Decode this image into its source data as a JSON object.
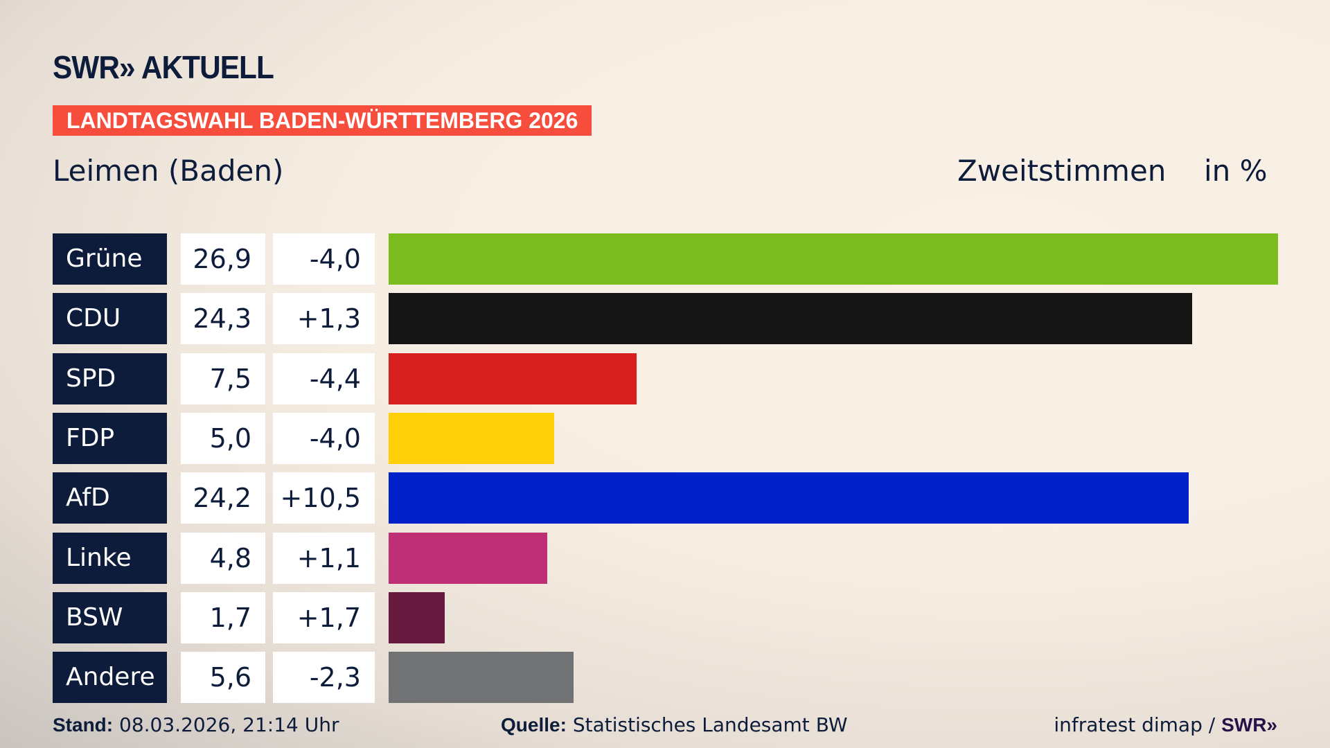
{
  "header": {
    "logo": "SWR» AKTUELL",
    "banner": "LANDTAGSWAHL BADEN-WÜRTTEMBERG 2026",
    "place": "Leimen (Baden)",
    "metric": "Zweitstimmen",
    "unit": "in %"
  },
  "chart_data": {
    "type": "bar",
    "orientation": "horizontal",
    "categories": [
      "Grüne",
      "CDU",
      "SPD",
      "FDP",
      "AfD",
      "Linke",
      "BSW",
      "Andere"
    ],
    "values": [
      26.9,
      24.3,
      7.5,
      5.0,
      24.2,
      4.8,
      1.7,
      5.6
    ],
    "value_labels": [
      "26,9",
      "24,3",
      "7,5",
      "5,0",
      "24,2",
      "4,8",
      "1,7",
      "5,6"
    ],
    "diffs": [
      -4.0,
      1.3,
      -4.4,
      -4.0,
      10.5,
      1.1,
      1.7,
      -2.3
    ],
    "diff_labels": [
      "-4,0",
      "+1,3",
      "-4,4",
      "-4,0",
      "+10,5",
      "+1,1",
      "+1,7",
      "-2,3"
    ],
    "colors": [
      "#7bbd1e",
      "#151515",
      "#d8201e",
      "#ffcf07",
      "#0021c8",
      "#bd3075",
      "#681a3e",
      "#717274"
    ],
    "xlim": [
      0,
      26.9
    ],
    "grid": false
  },
  "footer": {
    "stand_label": "Stand:",
    "stand_value": "08.03.2026, 21:14 Uhr",
    "source_label": "Quelle:",
    "source_value": "Statistisches Landesamt BW",
    "credit": "infratest dimap /",
    "credit_logo": "SWR»"
  }
}
